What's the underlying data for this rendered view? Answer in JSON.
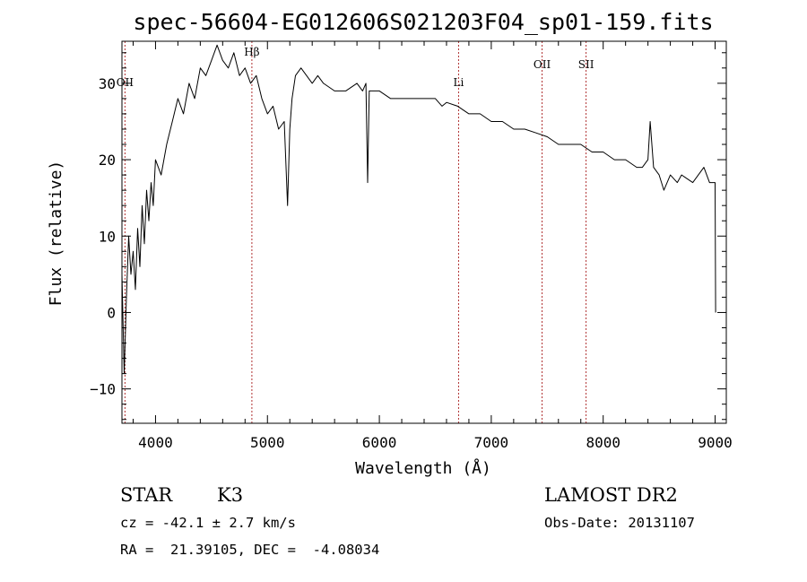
{
  "chart_data": {
    "type": "line",
    "title": "spec-56604-EG012606S021203F04_sp01-159.fits",
    "xlabel": "Wavelength (Å)",
    "ylabel": "Flux (relative)",
    "xlim": [
      3700,
      9100
    ],
    "ylim": [
      -14.5,
      35.5
    ],
    "xticks": [
      4000,
      5000,
      6000,
      7000,
      8000,
      9000
    ],
    "yticks": [
      -10,
      0,
      10,
      20,
      30
    ],
    "line_color": "#000000",
    "marker_color": "#b03030",
    "spectral_lines": [
      {
        "label": "OII",
        "x": 3727
      },
      {
        "label": "Hβ",
        "x": 4861
      },
      {
        "label": "Li",
        "x": 6708
      },
      {
        "label": "OII",
        "x": 7454
      },
      {
        "label": "SII",
        "x": 7847
      }
    ],
    "series": [
      {
        "x": [
          3700,
          3720,
          3740,
          3760,
          3780,
          3800,
          3820,
          3840,
          3860,
          3880,
          3900,
          3920,
          3940,
          3960,
          3980,
          4000,
          4050,
          4100,
          4150,
          4200,
          4250,
          4300,
          4350,
          4400,
          4450,
          4500,
          4550,
          4600,
          4650,
          4700,
          4750,
          4800,
          4850,
          4900,
          4950,
          5000,
          5050,
          5100,
          5150,
          5180,
          5200,
          5220,
          5250,
          5300,
          5350,
          5400,
          5450,
          5500,
          5600,
          5700,
          5800,
          5850,
          5880,
          5895,
          5910,
          5950,
          6000,
          6100,
          6200,
          6300,
          6400,
          6500,
          6560,
          6600,
          6700,
          6800,
          6900,
          7000,
          7100,
          7200,
          7300,
          7400,
          7500,
          7600,
          7700,
          7800,
          7900,
          8000,
          8100,
          8200,
          8300,
          8350,
          8400,
          8420,
          8450,
          8500,
          8542,
          8600,
          8662,
          8700,
          8800,
          8850,
          8900,
          8950,
          9000,
          9005
        ],
        "values": [
          5,
          -8,
          2,
          10,
          5,
          8,
          3,
          11,
          6,
          14,
          9,
          16,
          12,
          17,
          14,
          20,
          18,
          22,
          25,
          28,
          26,
          30,
          28,
          32,
          31,
          33,
          35,
          33,
          32,
          34,
          31,
          32,
          30,
          31,
          28,
          26,
          27,
          24,
          25,
          14,
          24,
          28,
          31,
          32,
          31,
          30,
          31,
          30,
          29,
          29,
          30,
          29,
          30,
          17,
          29,
          29,
          29,
          28,
          28,
          28,
          28,
          28,
          27,
          27.5,
          27,
          26,
          26,
          25,
          25,
          24,
          24,
          23.5,
          23,
          22,
          22,
          22,
          21,
          21,
          20,
          20,
          19,
          19,
          20,
          25,
          19,
          18,
          16,
          18,
          17,
          18,
          17,
          18,
          19,
          17,
          17,
          0
        ]
      }
    ]
  },
  "info": {
    "object_class": "STAR",
    "subclass": "K3",
    "survey": "LAMOST DR2",
    "cz": "cz = -42.1 ± 2.7 km/s",
    "obs_date": "Obs-Date: 20131107",
    "coords": "RA =  21.39105, DEC =  -4.08034"
  }
}
